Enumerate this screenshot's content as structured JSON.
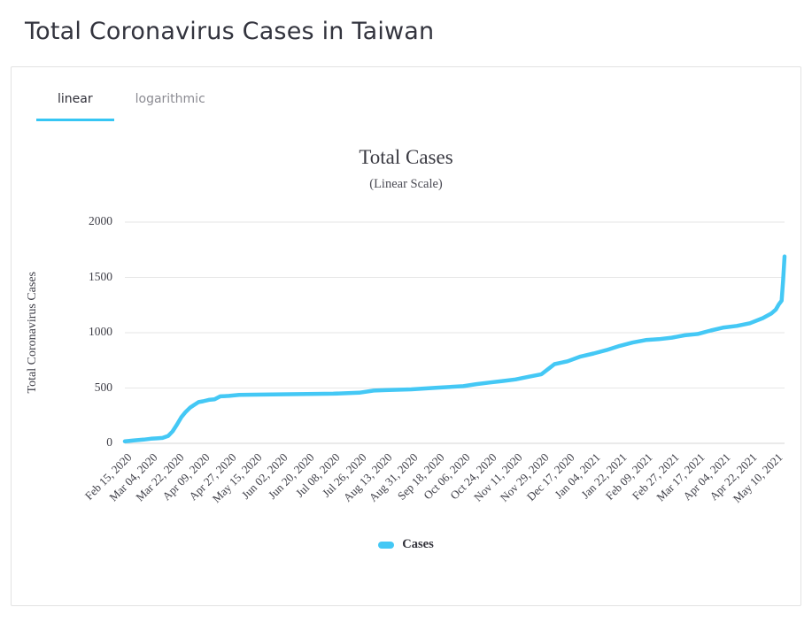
{
  "theme": {
    "accent": "#36c6f4",
    "card_border": "#e2e2e2"
  },
  "page": {
    "title": "Total Coronavirus Cases in Taiwan"
  },
  "tabs": {
    "linear": "linear",
    "logarithmic": "logarithmic",
    "active": "linear"
  },
  "chart_data": {
    "type": "line",
    "title": "Total Cases",
    "subtitle": "(Linear Scale)",
    "ylabel": "Total Coronavirus Cases",
    "xlabel": "",
    "ylim": [
      0,
      2000
    ],
    "yticks": [
      0,
      500,
      1000,
      1500,
      2000
    ],
    "grid": true,
    "legend_position": "bottom",
    "x_domain": [
      "2020-02-15",
      "2021-05-16"
    ],
    "xticks": [
      {
        "label": "Feb 15, 2020",
        "date": "2020-02-15"
      },
      {
        "label": "Mar 04, 2020",
        "date": "2020-03-04"
      },
      {
        "label": "Mar 22, 2020",
        "date": "2020-03-22"
      },
      {
        "label": "Apr 09, 2020",
        "date": "2020-04-09"
      },
      {
        "label": "Apr 27, 2020",
        "date": "2020-04-27"
      },
      {
        "label": "May 15, 2020",
        "date": "2020-05-15"
      },
      {
        "label": "Jun 02, 2020",
        "date": "2020-06-02"
      },
      {
        "label": "Jun 20, 2020",
        "date": "2020-06-20"
      },
      {
        "label": "Jul 08, 2020",
        "date": "2020-07-08"
      },
      {
        "label": "Jul 26, 2020",
        "date": "2020-07-26"
      },
      {
        "label": "Aug 13, 2020",
        "date": "2020-08-13"
      },
      {
        "label": "Aug 31, 2020",
        "date": "2020-08-31"
      },
      {
        "label": "Sep 18, 2020",
        "date": "2020-09-18"
      },
      {
        "label": "Oct 06, 2020",
        "date": "2020-10-06"
      },
      {
        "label": "Oct 24, 2020",
        "date": "2020-10-24"
      },
      {
        "label": "Nov 11, 2020",
        "date": "2020-11-11"
      },
      {
        "label": "Nov 29, 2020",
        "date": "2020-11-29"
      },
      {
        "label": "Dec 17, 2020",
        "date": "2020-12-17"
      },
      {
        "label": "Jan 04, 2021",
        "date": "2021-01-04"
      },
      {
        "label": "Jan 22, 2021",
        "date": "2021-01-22"
      },
      {
        "label": "Feb 09, 2021",
        "date": "2021-02-09"
      },
      {
        "label": "Feb 27, 2021",
        "date": "2021-02-27"
      },
      {
        "label": "Mar 17, 2021",
        "date": "2021-03-17"
      },
      {
        "label": "Apr 04, 2021",
        "date": "2021-04-04"
      },
      {
        "label": "Apr 22, 2021",
        "date": "2021-04-22"
      },
      {
        "label": "May 10, 2021",
        "date": "2021-05-10"
      }
    ],
    "series": [
      {
        "name": "Cases",
        "color": "#44c8f5",
        "points": [
          [
            "2020-02-15",
            18
          ],
          [
            "2020-02-21",
            26
          ],
          [
            "2020-02-28",
            34
          ],
          [
            "2020-03-04",
            42
          ],
          [
            "2020-03-08",
            45
          ],
          [
            "2020-03-12",
            49
          ],
          [
            "2020-03-16",
            67
          ],
          [
            "2020-03-19",
            108
          ],
          [
            "2020-03-22",
            169
          ],
          [
            "2020-03-25",
            235
          ],
          [
            "2020-03-28",
            283
          ],
          [
            "2020-03-31",
            322
          ],
          [
            "2020-04-03",
            348
          ],
          [
            "2020-04-06",
            373
          ],
          [
            "2020-04-09",
            380
          ],
          [
            "2020-04-13",
            393
          ],
          [
            "2020-04-17",
            398
          ],
          [
            "2020-04-21",
            425
          ],
          [
            "2020-04-27",
            429
          ],
          [
            "2020-05-04",
            438
          ],
          [
            "2020-05-15",
            440
          ],
          [
            "2020-06-02",
            443
          ],
          [
            "2020-06-20",
            446
          ],
          [
            "2020-07-08",
            449
          ],
          [
            "2020-07-26",
            458
          ],
          [
            "2020-08-05",
            477
          ],
          [
            "2020-08-13",
            481
          ],
          [
            "2020-08-31",
            488
          ],
          [
            "2020-09-18",
            503
          ],
          [
            "2020-10-06",
            517
          ],
          [
            "2020-10-15",
            535
          ],
          [
            "2020-10-24",
            550
          ],
          [
            "2020-11-02",
            563
          ],
          [
            "2020-11-11",
            578
          ],
          [
            "2020-11-20",
            602
          ],
          [
            "2020-11-29",
            625
          ],
          [
            "2020-12-05",
            686
          ],
          [
            "2020-12-08",
            716
          ],
          [
            "2020-12-17",
            742
          ],
          [
            "2020-12-26",
            785
          ],
          [
            "2021-01-04",
            812
          ],
          [
            "2021-01-13",
            843
          ],
          [
            "2021-01-22",
            881
          ],
          [
            "2021-01-31",
            911
          ],
          [
            "2021-02-09",
            934
          ],
          [
            "2021-02-18",
            942
          ],
          [
            "2021-02-27",
            955
          ],
          [
            "2021-03-08",
            977
          ],
          [
            "2021-03-17",
            989
          ],
          [
            "2021-03-26",
            1020
          ],
          [
            "2021-04-04",
            1047
          ],
          [
            "2021-04-13",
            1062
          ],
          [
            "2021-04-22",
            1086
          ],
          [
            "2021-05-01",
            1132
          ],
          [
            "2021-05-07",
            1175
          ],
          [
            "2021-05-10",
            1210
          ],
          [
            "2021-05-12",
            1256
          ],
          [
            "2021-05-14",
            1290
          ],
          [
            "2021-05-15",
            1475
          ],
          [
            "2021-05-16",
            1690
          ]
        ]
      }
    ]
  }
}
